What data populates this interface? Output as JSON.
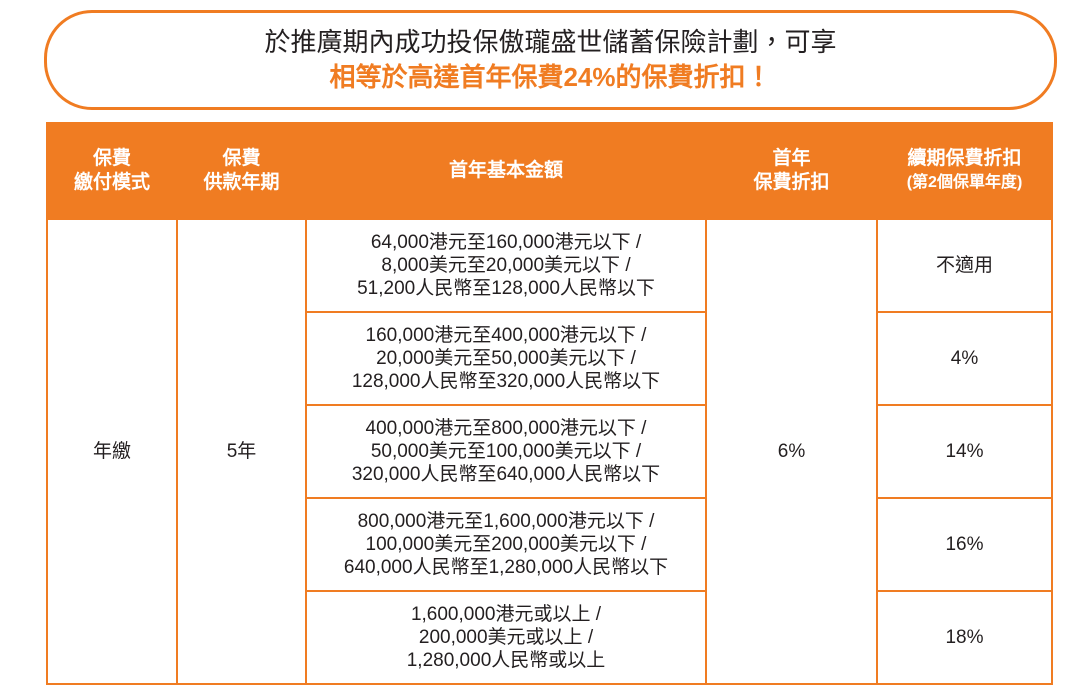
{
  "header": {
    "line1": "於推廣期內成功投保傲瓏盛世儲蓄保險計劃，可享",
    "line2": "相等於高達首年保費24%的保費折扣！"
  },
  "table": {
    "columns": [
      [
        "保費",
        "繳付模式"
      ],
      [
        "保費",
        "供款年期"
      ],
      [
        "首年基本金額"
      ],
      [
        "首年",
        "保費折扣"
      ],
      [
        "續期保費折扣",
        "(第2個保單年度)"
      ]
    ],
    "payment_mode": "年繳",
    "term": "5年",
    "first_year_discount": "6%",
    "tiers": [
      {
        "amount": [
          "64,000港元至160,000港元以下 /",
          "8,000美元至20,000美元以下 /",
          "51,200人民幣至128,000人民幣以下"
        ],
        "renewal_discount": "不適用"
      },
      {
        "amount": [
          "160,000港元至400,000港元以下 /",
          "20,000美元至50,000美元以下 /",
          "128,000人民幣至320,000人民幣以下"
        ],
        "renewal_discount": "4%"
      },
      {
        "amount": [
          "400,000港元至800,000港元以下 /",
          "50,000美元至100,000美元以下 /",
          "320,000人民幣至640,000人民幣以下"
        ],
        "renewal_discount": "14%"
      },
      {
        "amount": [
          "800,000港元至1,600,000港元以下 /",
          "100,000美元至200,000美元以下 /",
          "640,000人民幣至1,280,000人民幣以下"
        ],
        "renewal_discount": "16%"
      },
      {
        "amount": [
          "1,600,000港元或以上 /",
          "200,000美元或以上 /",
          "1,280,000人民幣或以上"
        ],
        "renewal_discount": "18%"
      }
    ]
  }
}
